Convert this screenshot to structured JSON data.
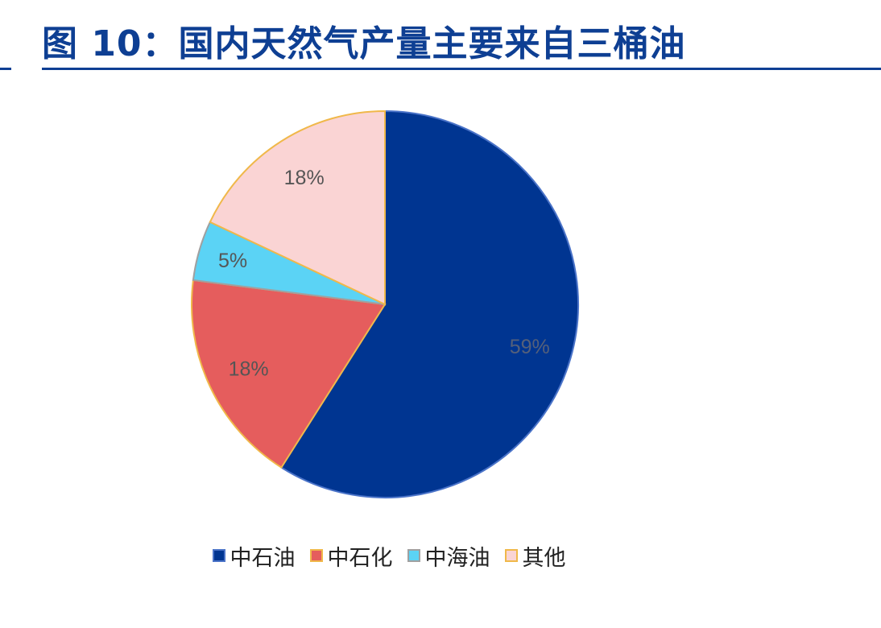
{
  "header": {
    "title": "图 10：国内天然气产量主要来自三桶油"
  },
  "colors": {
    "accent": "#0e3f93"
  },
  "chart_data": {
    "type": "pie",
    "title": "",
    "slices": [
      {
        "name": "中石油",
        "value": 59,
        "label": "59%",
        "color": "#003591",
        "stroke": "#4a73c8",
        "label_color": "#55607a"
      },
      {
        "name": "中石化",
        "value": 18,
        "label": "18%",
        "color": "#e55d5d",
        "stroke": "#f0b84a",
        "label_color": "#555555"
      },
      {
        "name": "中海油",
        "value": 5,
        "label": "5%",
        "color": "#5bd3f5",
        "stroke": "#a0a0a0",
        "label_color": "#555555"
      },
      {
        "name": "其他",
        "value": 18,
        "label": "18%",
        "color": "#fad4d4",
        "stroke": "#f0b84a",
        "label_color": "#555555"
      }
    ],
    "legend_position": "bottom"
  }
}
